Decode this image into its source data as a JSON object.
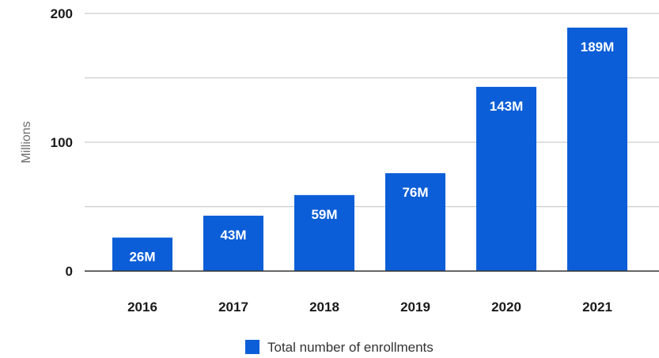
{
  "chart_data": {
    "type": "bar",
    "categories": [
      "2016",
      "2017",
      "2018",
      "2019",
      "2020",
      "2021"
    ],
    "series": [
      {
        "name": "Total number of enrollments",
        "values": [
          26,
          43,
          59,
          76,
          143,
          189
        ],
        "data_labels": [
          "26M",
          "43M",
          "59M",
          "76M",
          "143M",
          "189M"
        ]
      }
    ],
    "title": "",
    "xlabel": "",
    "ylabel": "Millions",
    "ylim": [
      0,
      200
    ],
    "yticks": [
      0,
      100,
      200
    ],
    "grid": true,
    "legend_position": "bottom-center",
    "colors": {
      "bar": "#0b5ed7"
    }
  }
}
